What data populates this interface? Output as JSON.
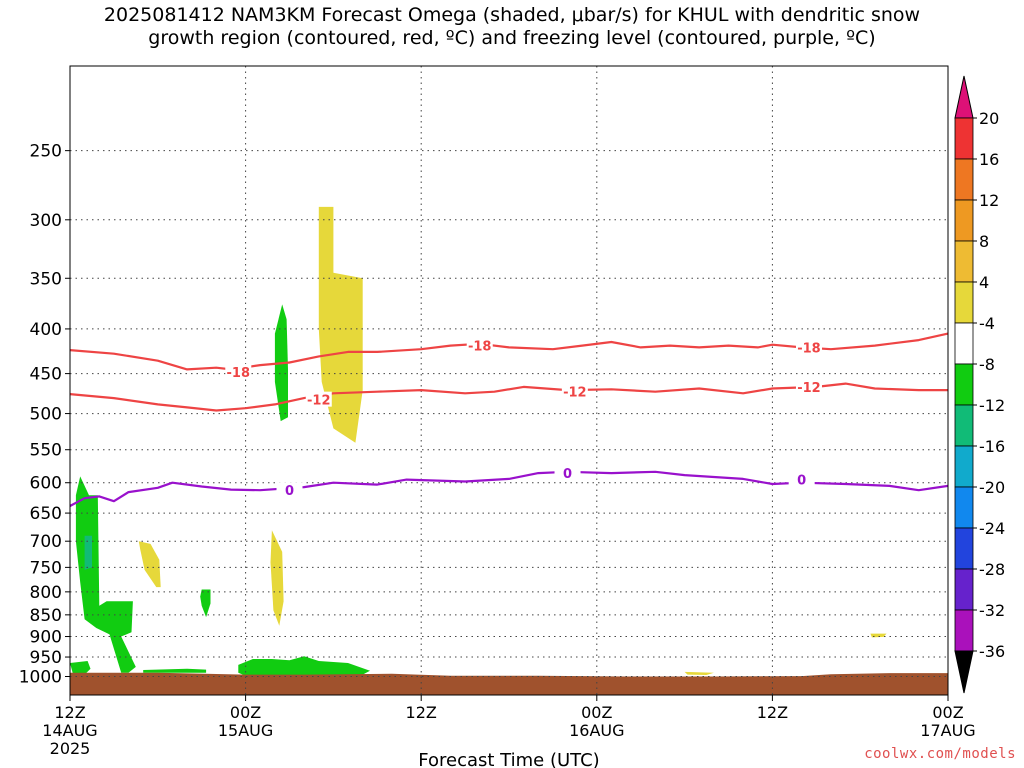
{
  "title": {
    "line1": "2025081412 NAM3KM Forecast Omega (shaded, μbar/s) for KHUL with dendritic snow",
    "line2": "growth region (contoured, red, ºC) and freezing level (contoured, purple, ºC)"
  },
  "watermark": "coolwx.com/models",
  "chart_data": {
    "type": "heatmap",
    "title": "2025081412 NAM3KM Forecast Omega (shaded, μbar/s) for KHUL with dendritic snow growth region (contoured, red, ºC) and freezing level (contoured, purple, ºC)",
    "xlabel": "Forecast Time (UTC)",
    "ylabel": "",
    "xlim": [
      0,
      60
    ],
    "ylim": [
      1050,
      200
    ],
    "y_scale": "log-pressure",
    "grid": true,
    "x_ticks": [
      {
        "hour": 0,
        "label1": "12Z",
        "label2": "14AUG",
        "label3": "2025"
      },
      {
        "hour": 12,
        "label1": "00Z",
        "label2": "15AUG",
        "label3": ""
      },
      {
        "hour": 24,
        "label1": "12Z",
        "label2": "",
        "label3": ""
      },
      {
        "hour": 36,
        "label1": "00Z",
        "label2": "16AUG",
        "label3": ""
      },
      {
        "hour": 48,
        "label1": "12Z",
        "label2": "",
        "label3": ""
      },
      {
        "hour": 60,
        "label1": "00Z",
        "label2": "17AUG",
        "label3": ""
      }
    ],
    "y_ticks": [
      1000,
      950,
      900,
      850,
      800,
      750,
      700,
      650,
      600,
      550,
      500,
      450,
      400,
      350,
      300,
      250
    ],
    "colorbar": {
      "levels": [
        20,
        16,
        12,
        8,
        4,
        -4,
        -8,
        -12,
        -16,
        -20,
        -24,
        -28,
        -32,
        -36
      ],
      "colors": [
        "#ee3333",
        "#ee7722",
        "#ee9922",
        "#eebb33",
        "#e6d83a",
        "#ffffff",
        "#11cc11",
        "#11bb77",
        "#11aacc",
        "#1188ee",
        "#2244dd",
        "#6622cc",
        "#aa11bb",
        "#aaaaaa"
      ],
      "top_color": "#dd1177",
      "bottom_color": "#000000"
    },
    "contours": [
      {
        "name": "-18",
        "color": "#ee4444",
        "points": [
          [
            0,
            423
          ],
          [
            3,
            427
          ],
          [
            6,
            435
          ],
          [
            8,
            445
          ],
          [
            10,
            443
          ],
          [
            11,
            445
          ],
          [
            13,
            440
          ],
          [
            15,
            437
          ],
          [
            17,
            430
          ],
          [
            19,
            425
          ],
          [
            21,
            425
          ],
          [
            24,
            422
          ],
          [
            26,
            418
          ],
          [
            28,
            416
          ],
          [
            30,
            420
          ],
          [
            33,
            422
          ],
          [
            35,
            418
          ],
          [
            37,
            414
          ],
          [
            39,
            420
          ],
          [
            41,
            418
          ],
          [
            43,
            420
          ],
          [
            45,
            418
          ],
          [
            47,
            420
          ],
          [
            48,
            417
          ],
          [
            50,
            420
          ],
          [
            52,
            422
          ],
          [
            55,
            418
          ],
          [
            58,
            412
          ],
          [
            60,
            405
          ]
        ],
        "labels": [
          [
            11.5,
            448
          ],
          [
            28,
            418
          ],
          [
            50.5,
            420
          ]
        ]
      },
      {
        "name": "-12",
        "color": "#ee4444",
        "points": [
          [
            0,
            475
          ],
          [
            3,
            480
          ],
          [
            6,
            488
          ],
          [
            8,
            492
          ],
          [
            10,
            496
          ],
          [
            12,
            493
          ],
          [
            14,
            488
          ],
          [
            16,
            480
          ],
          [
            18,
            474
          ],
          [
            21,
            472
          ],
          [
            24,
            470
          ],
          [
            27,
            474
          ],
          [
            29,
            472
          ],
          [
            31,
            466
          ],
          [
            34,
            470
          ],
          [
            37,
            469
          ],
          [
            40,
            472
          ],
          [
            43,
            468
          ],
          [
            46,
            474
          ],
          [
            48,
            468
          ],
          [
            51,
            466
          ],
          [
            53,
            462
          ],
          [
            55,
            468
          ],
          [
            58,
            470
          ],
          [
            60,
            470
          ]
        ],
        "labels": [
          [
            17,
            482
          ],
          [
            34.5,
            472
          ],
          [
            50.5,
            466
          ]
        ]
      },
      {
        "name": "0",
        "color": "#9911cc",
        "points": [
          [
            0,
            638
          ],
          [
            1,
            625
          ],
          [
            2,
            622
          ],
          [
            3,
            630
          ],
          [
            4,
            615
          ],
          [
            6,
            608
          ],
          [
            7,
            600
          ],
          [
            9,
            606
          ],
          [
            11,
            611
          ],
          [
            13,
            612
          ],
          [
            16,
            607
          ],
          [
            18,
            600
          ],
          [
            21,
            603
          ],
          [
            23,
            595
          ],
          [
            27,
            598
          ],
          [
            30,
            594
          ],
          [
            32,
            585
          ],
          [
            34,
            583
          ],
          [
            37,
            585
          ],
          [
            40,
            583
          ],
          [
            42,
            588
          ],
          [
            46,
            594
          ],
          [
            48,
            602
          ],
          [
            50,
            600
          ],
          [
            53,
            602
          ],
          [
            56,
            605
          ],
          [
            58,
            612
          ],
          [
            60,
            605
          ]
        ],
        "labels": [
          [
            15,
            612
          ],
          [
            34,
            585
          ],
          [
            50,
            595
          ]
        ]
      }
    ],
    "regions": [
      {
        "name": "ascent",
        "color": "#e6d83a",
        "points": [
          [
            17,
            290
          ],
          [
            18,
            290
          ],
          [
            18,
            345
          ],
          [
            20,
            350
          ],
          [
            20,
            470
          ],
          [
            19.5,
            540
          ],
          [
            18,
            520
          ],
          [
            17.2,
            460
          ],
          [
            17,
            400
          ]
        ]
      },
      {
        "name": "ascent",
        "color": "#e6d83a",
        "points": [
          [
            4.7,
            700
          ],
          [
            5.5,
            705
          ],
          [
            6.1,
            735
          ],
          [
            6.2,
            790
          ],
          [
            5.9,
            790
          ],
          [
            5.1,
            755
          ],
          [
            4.8,
            715
          ]
        ]
      },
      {
        "name": "ascent",
        "color": "#e6d83a",
        "points": [
          [
            13.8,
            680
          ],
          [
            14.5,
            720
          ],
          [
            14.6,
            820
          ],
          [
            14.3,
            875
          ],
          [
            13.9,
            840
          ],
          [
            13.7,
            740
          ]
        ]
      },
      {
        "name": "ascent",
        "color": "#e6d83a",
        "points": [
          [
            42,
            988
          ],
          [
            44,
            990
          ],
          [
            43.5,
            996
          ],
          [
            42.2,
            995
          ]
        ]
      },
      {
        "name": "ascent",
        "color": "#e6d83a",
        "points": [
          [
            54.7,
            893
          ],
          [
            55.8,
            893
          ],
          [
            55.6,
            901
          ],
          [
            54.8,
            902
          ]
        ]
      },
      {
        "name": "descent",
        "color": "#11cc11",
        "points": [
          [
            14.5,
            375
          ],
          [
            14.8,
            390
          ],
          [
            14.9,
            445
          ],
          [
            14.9,
            505
          ],
          [
            14.4,
            510
          ],
          [
            14.0,
            460
          ],
          [
            14.0,
            405
          ]
        ]
      },
      {
        "name": "descent",
        "color": "#11cc11",
        "points": [
          [
            0.4,
            620
          ],
          [
            0.7,
            590
          ],
          [
            1.3,
            620
          ],
          [
            1.9,
            620
          ],
          [
            2.0,
            830
          ],
          [
            2.5,
            820
          ],
          [
            4.3,
            820
          ],
          [
            4.2,
            890
          ],
          [
            3.5,
            900
          ],
          [
            4.5,
            975
          ],
          [
            4.0,
            990
          ],
          [
            3.5,
            990
          ],
          [
            2.7,
            895
          ],
          [
            1.8,
            880
          ],
          [
            1.0,
            860
          ],
          [
            0.7,
            780
          ],
          [
            0.4,
            700
          ]
        ]
      },
      {
        "name": "descent",
        "color": "#11cc11",
        "points": [
          [
            9.0,
            795
          ],
          [
            9.6,
            795
          ],
          [
            9.6,
            825
          ],
          [
            9.3,
            855
          ],
          [
            9.0,
            830
          ],
          [
            8.9,
            810
          ]
        ]
      },
      {
        "name": "descent",
        "color": "#11cc11",
        "points": [
          [
            0.0,
            965
          ],
          [
            1.2,
            960
          ],
          [
            1.4,
            980
          ],
          [
            1.0,
            995
          ],
          [
            0.2,
            993
          ]
        ]
      },
      {
        "name": "descent",
        "color": "#11cc11",
        "points": [
          [
            5.0,
            983
          ],
          [
            8.0,
            980
          ],
          [
            9.3,
            982
          ],
          [
            9.3,
            990
          ],
          [
            5.0,
            990
          ]
        ]
      },
      {
        "name": "descent",
        "color": "#11cc11",
        "points": [
          [
            11.5,
            970
          ],
          [
            12.5,
            955
          ],
          [
            13.8,
            955
          ],
          [
            15.0,
            958
          ],
          [
            16.0,
            948
          ],
          [
            17.0,
            960
          ],
          [
            19.0,
            965
          ],
          [
            20.5,
            985
          ],
          [
            20.0,
            995
          ],
          [
            12.0,
            998
          ],
          [
            11.5,
            990
          ]
        ]
      },
      {
        "name": "descent_strong",
        "color": "#11bb77",
        "points": [
          [
            1.0,
            690
          ],
          [
            1.5,
            690
          ],
          [
            1.5,
            750
          ],
          [
            1.0,
            755
          ]
        ]
      }
    ],
    "terrain": {
      "color": "#a0522d",
      "points": [
        [
          0,
          990
        ],
        [
          6,
          990
        ],
        [
          12,
          995
        ],
        [
          16,
          995
        ],
        [
          22,
          993
        ],
        [
          26,
          998
        ],
        [
          32,
          998
        ],
        [
          38,
          1000
        ],
        [
          44,
          1000
        ],
        [
          50,
          999
        ],
        [
          52,
          994
        ],
        [
          56,
          991
        ],
        [
          60,
          991
        ]
      ]
    }
  }
}
